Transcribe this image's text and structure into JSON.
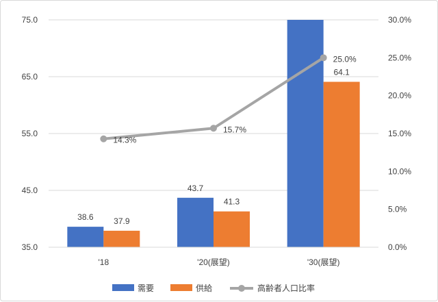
{
  "chart_data": {
    "type": "bar",
    "categories": [
      "'18",
      "'20(展望)",
      "'30(展望)"
    ],
    "series": [
      {
        "name": "需要",
        "type": "bar",
        "axis": "left",
        "color": "#4472c4",
        "values": [
          38.6,
          43.7,
          75.0
        ],
        "labels": [
          "38.6",
          "43.7",
          ""
        ]
      },
      {
        "name": "供給",
        "type": "bar",
        "axis": "left",
        "color": "#ed7d31",
        "values": [
          37.9,
          41.3,
          64.1
        ],
        "labels": [
          "37.9",
          "41.3",
          "64.1"
        ]
      },
      {
        "name": "高齢者人口比率",
        "type": "line",
        "axis": "right",
        "color": "#a5a5a5",
        "values": [
          14.3,
          15.7,
          25.0
        ],
        "labels": [
          "14.3%",
          "15.7%",
          "25.0%"
        ]
      }
    ],
    "y_left": {
      "min": 35,
      "max": 75,
      "ticks": [
        35,
        45,
        55,
        65,
        75
      ],
      "tick_labels": [
        "35.0",
        "45.0",
        "55.0",
        "65.0",
        "75.0"
      ]
    },
    "y_right": {
      "min": 0,
      "max": 30,
      "ticks": [
        0,
        5,
        10,
        15,
        20,
        25,
        30
      ],
      "tick_labels": [
        "0.0%",
        "5.0%",
        "10.0%",
        "15.0%",
        "20.0%",
        "25.0%",
        "30.0%"
      ]
    },
    "grid": true,
    "legend": "bottom"
  }
}
